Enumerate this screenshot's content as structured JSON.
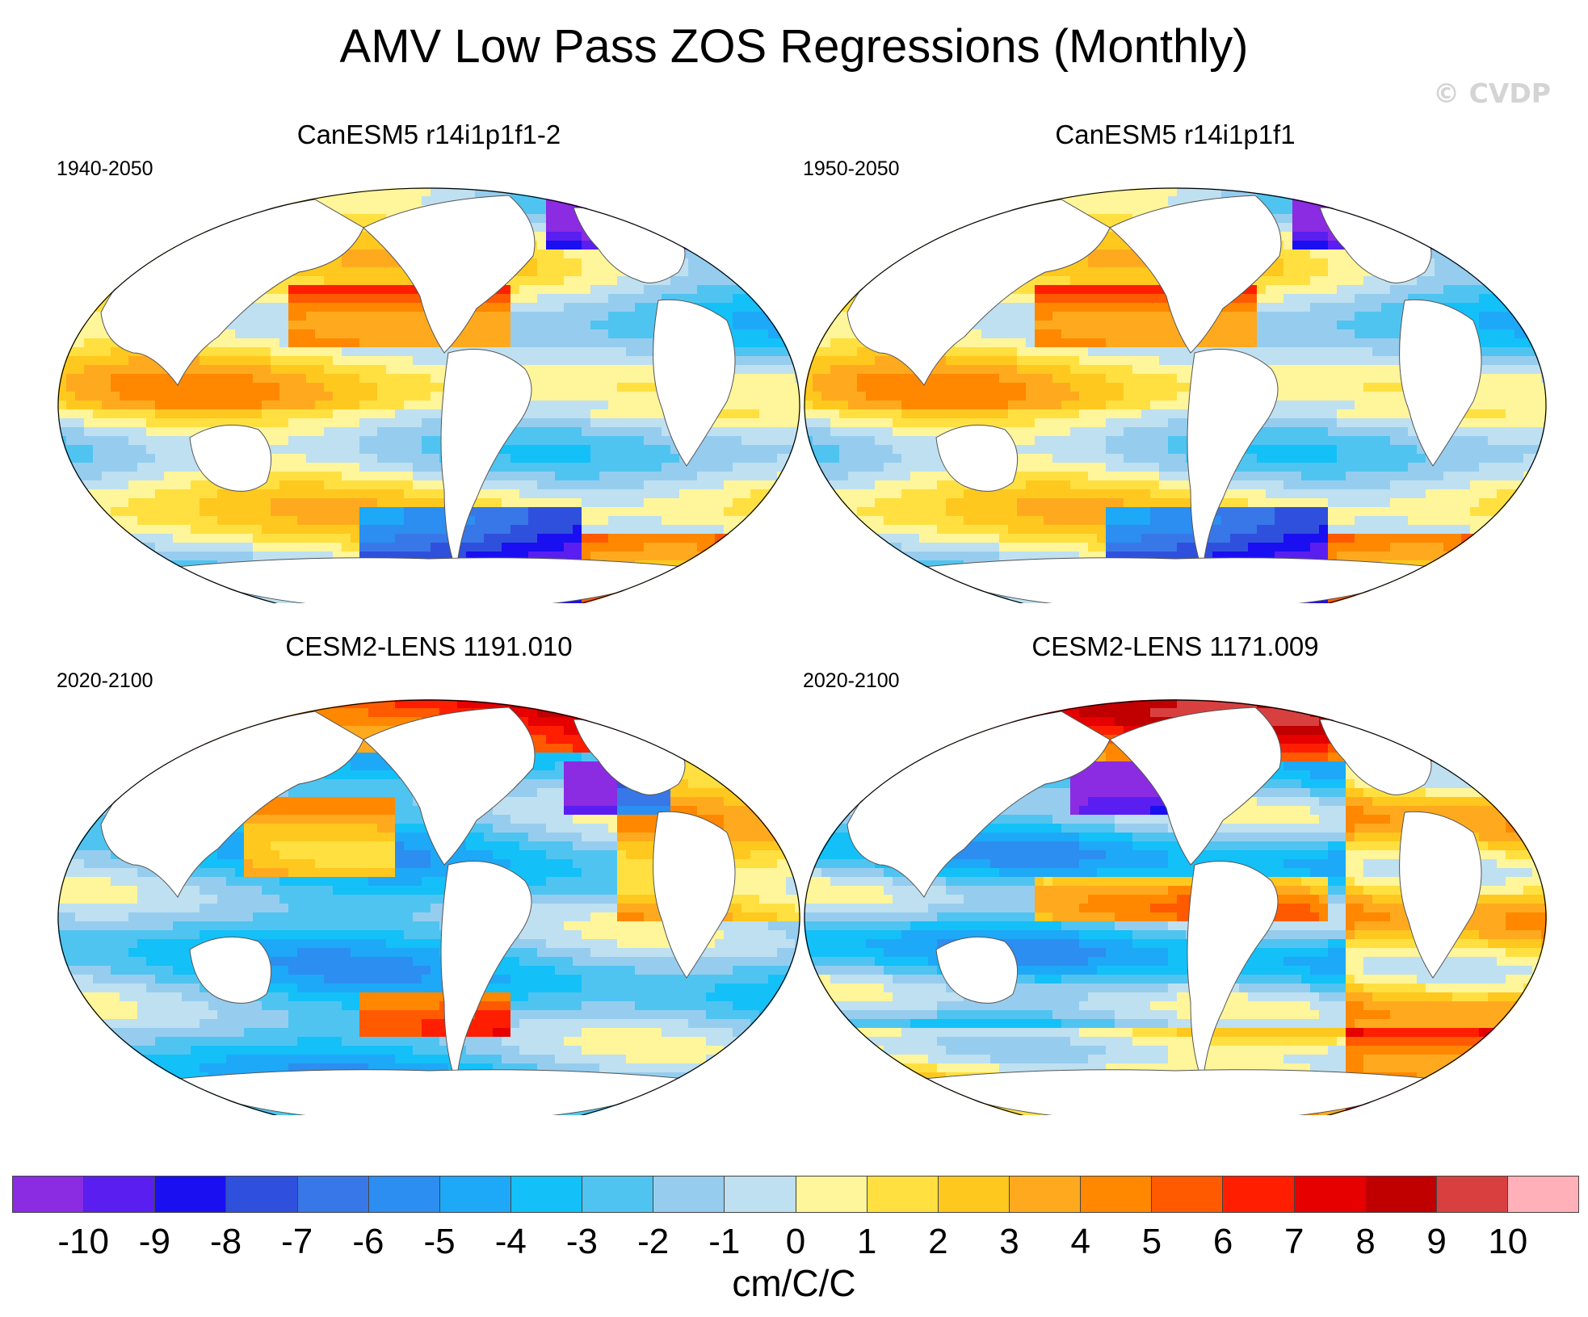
{
  "title": "AMV Low Pass ZOS Regressions (Monthly)",
  "watermark": "© CVDP",
  "panels": [
    {
      "title": "CanESM5 r14i1p1f1-2",
      "period": "1940-2050",
      "style": 0
    },
    {
      "title": "CanESM5 r14i1p1f1",
      "period": "1950-2050",
      "style": 0
    },
    {
      "title": "CESM2-LENS 1191.010",
      "period": "2020-2100",
      "style": 1
    },
    {
      "title": "CESM2-LENS 1171.009",
      "period": "2020-2100",
      "style": 2
    }
  ],
  "colorbar": {
    "units": "cm/C/C",
    "ticks": [
      "-10",
      "-9",
      "-8",
      "-7",
      "-6",
      "-5",
      "-4",
      "-3",
      "-2",
      "-1",
      "0",
      "1",
      "2",
      "3",
      "4",
      "5",
      "6",
      "7",
      "8",
      "9",
      "10"
    ],
    "colors": [
      "#8b2be2",
      "#5a1ff0",
      "#1a0ff0",
      "#2f50dc",
      "#3877e8",
      "#2c8ef0",
      "#1ea8f8",
      "#14c0f8",
      "#50c4f0",
      "#96cdef",
      "#bfe0f0",
      "#fff59a",
      "#ffe040",
      "#ffc81e",
      "#ffaa1e",
      "#ff8800",
      "#ff5a00",
      "#ff1e00",
      "#e60000",
      "#c00000",
      "#d84040",
      "#ffb0b8"
    ]
  }
}
